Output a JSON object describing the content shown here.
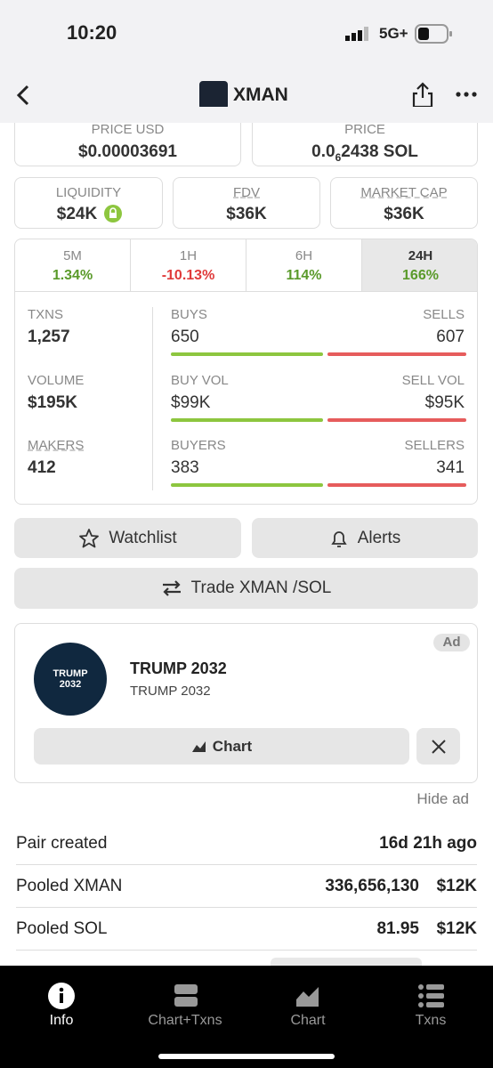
{
  "status_bar": {
    "time": "10:20",
    "network": "5G+"
  },
  "header": {
    "title": "XMAN"
  },
  "price_usd": {
    "label": "PRICE USD",
    "value": "$0.00003691"
  },
  "price_sol": {
    "label": "PRICE",
    "value_prefix": "0.0",
    "subscript": "6",
    "value_suffix": "2438 SOL"
  },
  "stats": [
    {
      "label": "LIQUIDITY",
      "value": "$24K"
    },
    {
      "label": "FDV",
      "value": "$36K"
    },
    {
      "label": "MARKET CAP",
      "value": "$36K"
    }
  ],
  "timeframes": [
    {
      "label": "5M",
      "change": "1.34%"
    },
    {
      "label": "1H",
      "change": "-10.13%"
    },
    {
      "label": "6H",
      "change": "114%"
    },
    {
      "label": "24H",
      "change": "166%"
    }
  ],
  "metrics": [
    {
      "label": "TXNS",
      "value": "1,257",
      "left_label": "BUYS",
      "left_value": "650",
      "right_label": "SELLS",
      "right_value": "607"
    },
    {
      "label": "VOLUME",
      "value": "$195K",
      "left_label": "BUY VOL",
      "left_value": "$99K",
      "right_label": "SELL VOL",
      "right_value": "$95K"
    },
    {
      "label": "MAKERS",
      "value": "412",
      "left_label": "BUYERS",
      "left_value": "383",
      "right_label": "SELLERS",
      "right_value": "341"
    }
  ],
  "buttons": {
    "watchlist": "Watchlist",
    "alerts": "Alerts",
    "trade": "Trade XMAN /SOL"
  },
  "ad": {
    "badge": "Ad",
    "logo_line1": "TRUMP",
    "logo_line2": "2032",
    "title": "TRUMP 2032",
    "subtitle": "TRUMP 2032",
    "chart_button": "Chart"
  },
  "hide_ad": "Hide ad",
  "info_rows": [
    {
      "label": "Pair created",
      "value": "16d 21h ago"
    },
    {
      "label": "Pooled XMAN",
      "value": "336,656,130",
      "usd": "$12K"
    },
    {
      "label": "Pooled SOL",
      "value": "81.95",
      "usd": "$12K"
    }
  ],
  "tabs": [
    "Info",
    "Chart+Txns",
    "Chart",
    "Txns"
  ]
}
